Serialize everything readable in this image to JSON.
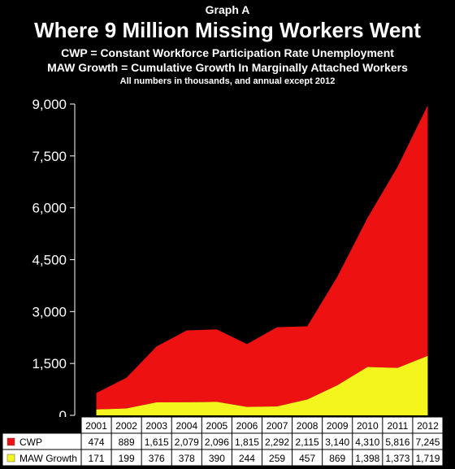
{
  "header": {
    "graph_label": "Graph A",
    "title": "Where 9 Million Missing Workers  Went",
    "subtitle_1": "CWP = Constant Workforce Participation Rate Unemployment",
    "subtitle_2": "MAW Growth = Cumulative Growth In Marginally Attached Workers",
    "note": "All numbers in thousands, and annual except 2012"
  },
  "colors": {
    "cwp": "#ee1111",
    "maw": "#f5f51e",
    "background": "#000000",
    "table_bg": "#ffffff"
  },
  "chart_data": {
    "type": "area",
    "stacked": true,
    "categories": [
      "2001",
      "2002",
      "2003",
      "2004",
      "2005",
      "2006",
      "2007",
      "2008",
      "2009",
      "2010",
      "2011",
      "2012"
    ],
    "series": [
      {
        "name": "CWP",
        "values": [
          474,
          889,
          1615,
          2079,
          2096,
          1815,
          2292,
          2115,
          3140,
          4310,
          5816,
          7245
        ],
        "labels": [
          "474",
          "889",
          "1,615",
          "2,079",
          "2,096",
          "1,815",
          "2,292",
          "2,115",
          "3,140",
          "4,310",
          "5,816",
          "7,245"
        ]
      },
      {
        "name": "MAW Growth",
        "values": [
          171,
          199,
          376,
          378,
          390,
          244,
          259,
          457,
          869,
          1398,
          1373,
          1719
        ],
        "labels": [
          "171",
          "199",
          "376",
          "378",
          "390",
          "244",
          "259",
          "457",
          "869",
          "1,398",
          "1,373",
          "1,719"
        ]
      }
    ],
    "y_ticks": [
      "0",
      "1,500",
      "3,000",
      "4,500",
      "6,000",
      "7,500",
      "9,000"
    ],
    "y_tick_values": [
      0,
      1500,
      3000,
      4500,
      6000,
      7500,
      9000
    ],
    "ylim": [
      0,
      9000
    ],
    "grid": false,
    "legend_placement": "data-table"
  }
}
